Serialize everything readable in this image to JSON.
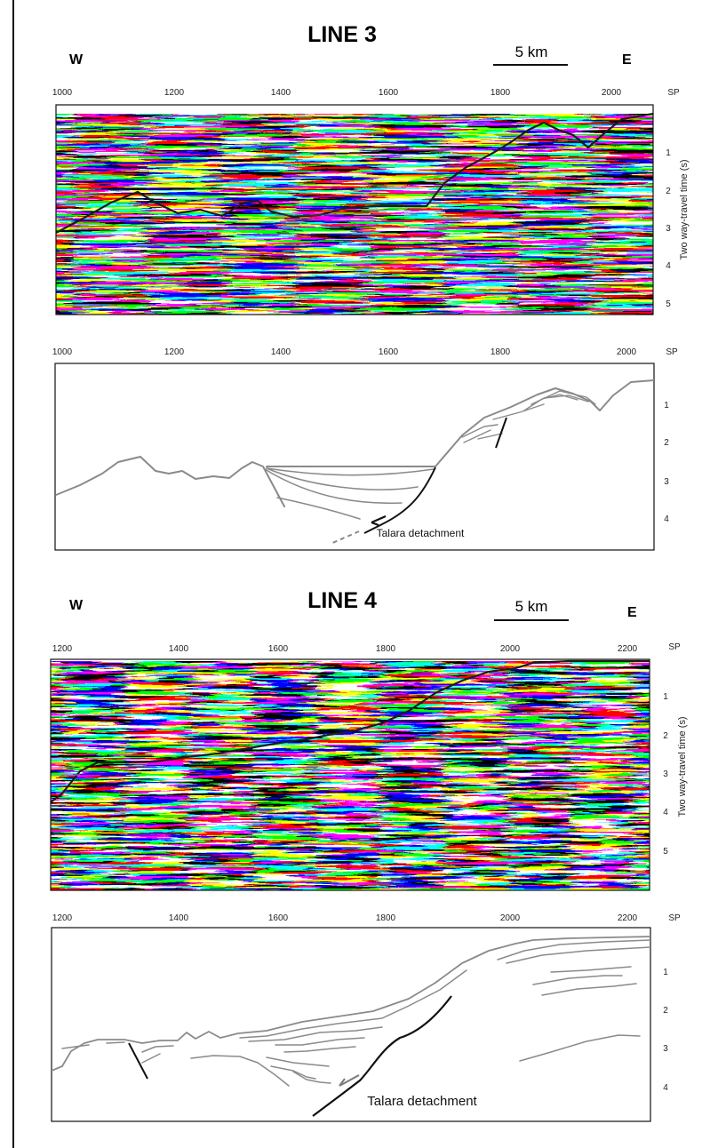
{
  "page_edge_color": "#111111",
  "seismic_bg": "#cfcfcf",
  "interp_line_color": "#8a8a8a",
  "fault_color": "#111111",
  "lines": [
    {
      "title": "LINE 3",
      "west": "W",
      "east": "E",
      "scale_label": "5 km",
      "sp_unit": "SP",
      "y_axis_label": "Two way-travel time (s)",
      "seismic_sp_ticks": [
        "1000",
        "1200",
        "1400",
        "1600",
        "1800",
        "2000"
      ],
      "interp_sp_ticks": [
        "1000",
        "1200",
        "1400",
        "1600",
        "1800",
        "2000"
      ],
      "time_ticks": [
        "1",
        "2",
        "3",
        "4",
        "5"
      ],
      "interp_time_ticks": [
        "1",
        "2",
        "3",
        "4"
      ],
      "annotation": "Talara detachment"
    },
    {
      "title": "LINE 4",
      "west": "W",
      "east": "E",
      "scale_label": "5 km",
      "sp_unit": "SP",
      "y_axis_label": "Two way-travel time (s)",
      "seismic_sp_ticks": [
        "1200",
        "1400",
        "1600",
        "1800",
        "2000",
        "2200"
      ],
      "interp_sp_ticks": [
        "1200",
        "1400",
        "1600",
        "1800",
        "2000",
        "2200"
      ],
      "time_ticks": [
        "1",
        "2",
        "3",
        "4",
        "5"
      ],
      "interp_time_ticks": [
        "1",
        "2",
        "3",
        "4"
      ],
      "annotation": "Talara detachment"
    }
  ]
}
